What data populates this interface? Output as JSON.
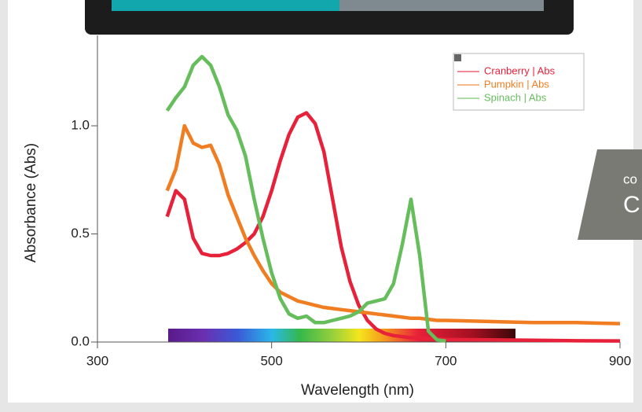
{
  "chart_data": {
    "type": "line",
    "x_label": "Wavelength (nm)",
    "y_label": "Absorbance (Abs)",
    "x": [
      380,
      390,
      400,
      410,
      420,
      430,
      440,
      450,
      460,
      470,
      480,
      490,
      500,
      510,
      520,
      530,
      540,
      550,
      560,
      570,
      580,
      590,
      600,
      610,
      620,
      630,
      640,
      650,
      660,
      670,
      680,
      690,
      700,
      750,
      800,
      850,
      900
    ],
    "series": [
      {
        "name": "Cranberry | Abs",
        "color": "#e8213a",
        "values": [
          0.58,
          0.7,
          0.66,
          0.48,
          0.41,
          0.4,
          0.4,
          0.41,
          0.43,
          0.46,
          0.5,
          0.58,
          0.7,
          0.84,
          0.96,
          1.04,
          1.06,
          1.01,
          0.88,
          0.66,
          0.44,
          0.28,
          0.17,
          0.1,
          0.06,
          0.04,
          0.03,
          0.025,
          0.02,
          0.02,
          0.015,
          0.015,
          0.012,
          0.01,
          0.008,
          0.006,
          0.005
        ]
      },
      {
        "name": "Pumpkin | Abs",
        "color": "#f07d22",
        "values": [
          0.7,
          0.8,
          1.0,
          0.92,
          0.9,
          0.91,
          0.82,
          0.68,
          0.58,
          0.48,
          0.4,
          0.33,
          0.27,
          0.23,
          0.21,
          0.19,
          0.18,
          0.17,
          0.16,
          0.155,
          0.15,
          0.145,
          0.14,
          0.135,
          0.13,
          0.125,
          0.12,
          0.115,
          0.11,
          0.11,
          0.105,
          0.1,
          0.1,
          0.095,
          0.09,
          0.09,
          0.085
        ]
      },
      {
        "name": "Spinach | Abs",
        "color": "#66bd5c",
        "values": [
          1.07,
          1.13,
          1.18,
          1.28,
          1.32,
          1.28,
          1.18,
          1.05,
          0.98,
          0.86,
          0.66,
          0.48,
          0.32,
          0.2,
          0.13,
          0.11,
          0.12,
          0.09,
          0.09,
          0.1,
          0.11,
          0.12,
          0.14,
          0.18,
          0.19,
          0.2,
          0.27,
          0.45,
          0.66,
          0.4,
          0.05,
          0.01,
          0.005,
          null,
          null,
          null,
          null
        ]
      }
    ],
    "xlim": [
      300,
      900
    ],
    "xticks": [
      300,
      500,
      700,
      900
    ],
    "ylim": [
      0,
      1.4
    ],
    "yticks": [
      {
        "value": 0,
        "label": "0.0"
      },
      0.5,
      {
        "value": 1,
        "label": "1.0"
      }
    ],
    "legend": "upper right"
  },
  "side_panel": {
    "line1": "co",
    "line2": "C"
  }
}
